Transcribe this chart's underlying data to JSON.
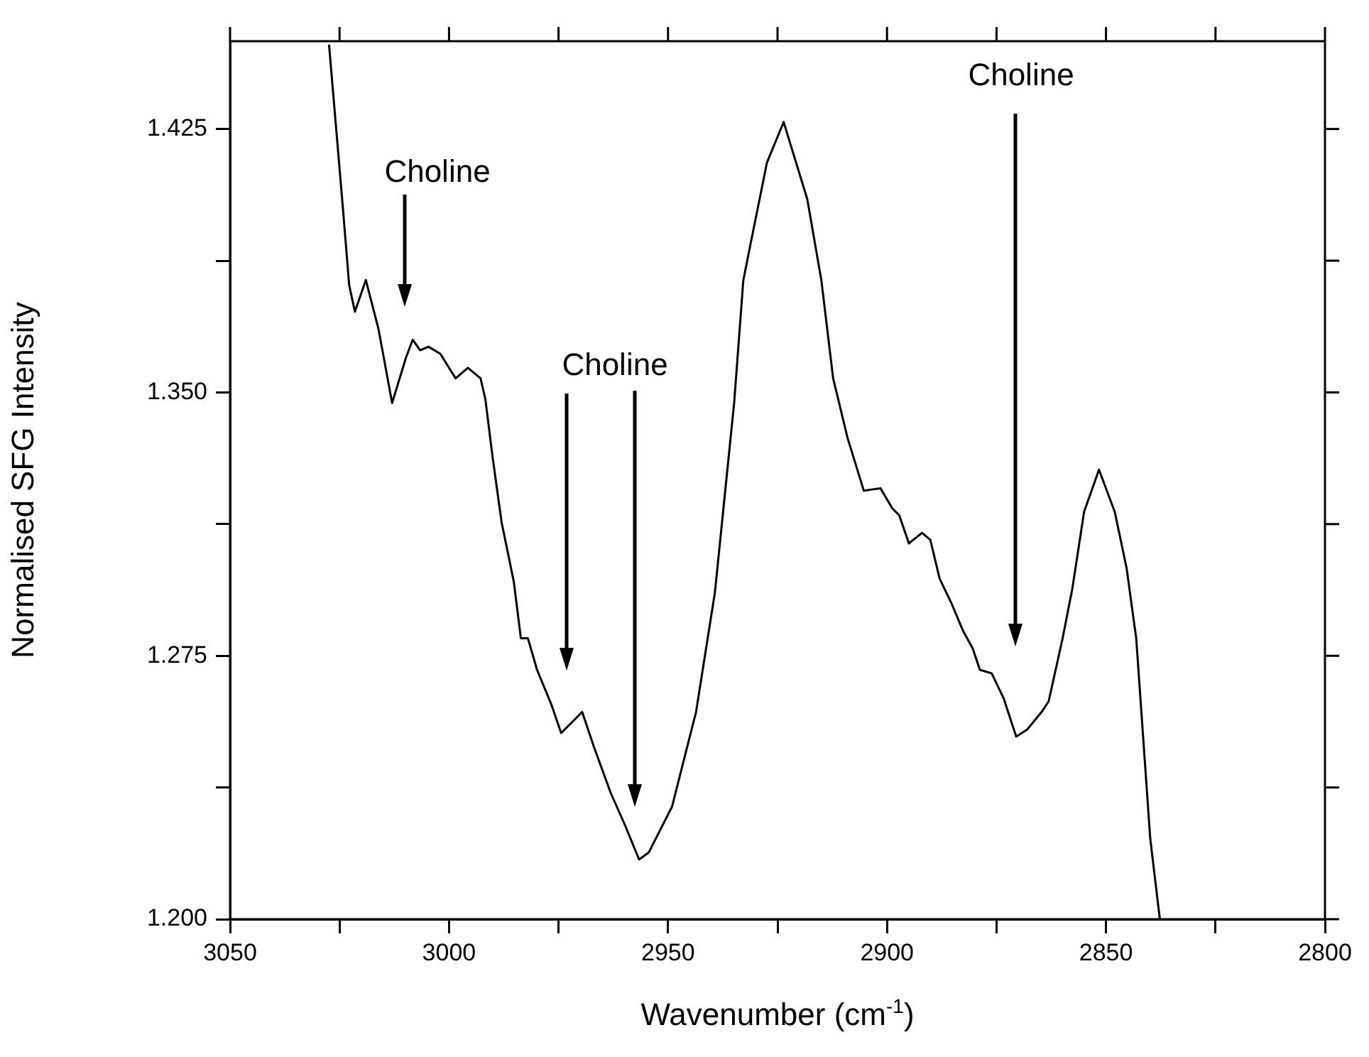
{
  "chart_data": {
    "type": "line",
    "xlabel": "Wavenumber (cm$^{-1}$)",
    "ylabel": "Normalised SFG Intensity",
    "x": [
      3027.4,
      3024.2,
      3022.8,
      3021.5,
      3019.0,
      3016.1,
      3013.0,
      3009.8,
      3008.3,
      3006.6,
      3004.7,
      3002.0,
      2998.5,
      2995.7,
      2992.8,
      2991.7,
      2990.1,
      2988.0,
      2985.2,
      2983.6,
      2982.0,
      2979.9,
      2976.6,
      2974.4,
      2971.2,
      2969.6,
      2966.9,
      2963.1,
      2959.9,
      2956.6,
      2954.4,
      2949.1,
      2943.6,
      2939.3,
      2934.9,
      2932.8,
      2931.2,
      2927.4,
      2923.6,
      2918.2,
      2915.0,
      2912.3,
      2909.0,
      2905.3,
      2901.5,
      2898.8,
      2897.2,
      2895.0,
      2892.0,
      2890.1,
      2888.0,
      2885.3,
      2882.6,
      2880.4,
      2878.8,
      2876.1,
      2873.4,
      2870.5,
      2868.0,
      2864.7,
      2863.1,
      2859.9,
      2857.7,
      2855.0,
      2851.6,
      2848.0,
      2845.3,
      2843.1,
      2839.9,
      2837.7
    ],
    "series": [
      {
        "color": "#000000",
        "values": [
          1.449,
          1.402,
          1.3805,
          1.373,
          1.382,
          1.368,
          1.347,
          1.36,
          1.365,
          1.362,
          1.363,
          1.361,
          1.354,
          1.357,
          1.354,
          1.348,
          1.332,
          1.313,
          1.296,
          1.28,
          1.28,
          1.271,
          1.261,
          1.253,
          1.257,
          1.259,
          1.249,
          1.236,
          1.227,
          1.217,
          1.219,
          1.232,
          1.259,
          1.293,
          1.347,
          1.382,
          1.392,
          1.4155,
          1.427,
          1.405,
          1.382,
          1.354,
          1.337,
          1.322,
          1.3227,
          1.317,
          1.315,
          1.307,
          1.31,
          1.308,
          1.297,
          1.29,
          1.282,
          1.277,
          1.271,
          1.27,
          1.263,
          1.252,
          1.254,
          1.259,
          1.262,
          1.28,
          1.294,
          1.316,
          1.328,
          1.316,
          1.3,
          1.28,
          1.223,
          1.2
        ]
      }
    ],
    "xlim": [
      3050,
      2800
    ],
    "xticks": [
      3050,
      {
        "value": 3025,
        "label": null
      },
      3000,
      {
        "value": 2975,
        "label": null
      },
      2950,
      {
        "value": 2925,
        "label": null
      },
      2900,
      {
        "value": 2875,
        "label": null
      },
      2850,
      {
        "value": 2825,
        "label": null
      },
      2800
    ],
    "ylim": [
      1.2,
      1.45
    ],
    "yticks": [
      {
        "value": 1.2,
        "label": "1.200"
      },
      {
        "value": 1.2375,
        "label": null
      },
      {
        "value": 1.275,
        "label": "1.275"
      },
      {
        "value": 1.3125,
        "label": null
      },
      {
        "value": 1.35,
        "label": "1.350"
      },
      {
        "value": 1.3875,
        "label": null
      },
      {
        "value": 1.425,
        "label": "1.425"
      }
    ],
    "marker": "none",
    "line_style": "solid",
    "annotations": [
      "Choline",
      "Choline",
      "Choline"
    ]
  }
}
